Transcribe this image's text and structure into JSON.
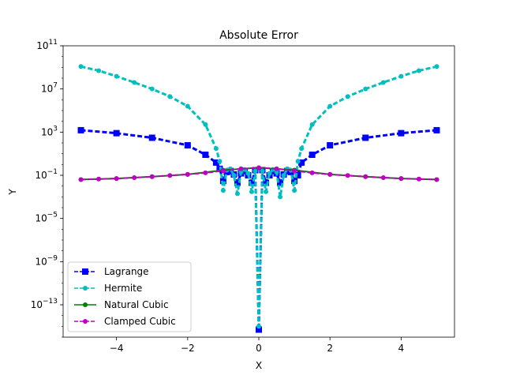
{
  "chart_data": {
    "type": "line",
    "title": "Absolute Error",
    "xlabel": "X",
    "ylabel": "Y",
    "xlim": [
      -5.5,
      5.5
    ],
    "ylim": [
      1e-16,
      100000000000.0
    ],
    "yscale": "log",
    "grid": false,
    "legend_position": "lower-left",
    "x_ticks": [
      -4,
      -2,
      0,
      2,
      4
    ],
    "x_tick_labels": [
      "−4",
      "−2",
      "0",
      "2",
      "4"
    ],
    "y_ticks": [
      {
        "value": 100000000000.0,
        "base": "10",
        "exp": "11"
      },
      {
        "value": 10000000.0,
        "base": "10",
        "exp": "7"
      },
      {
        "value": 1000.0,
        "base": "10",
        "exp": "3"
      },
      {
        "value": 0.1,
        "base": "10",
        "exp": "−1"
      },
      {
        "value": 1e-05,
        "base": "10",
        "exp": "−5"
      },
      {
        "value": 1e-09,
        "base": "10",
        "exp": "−9"
      },
      {
        "value": 1e-13,
        "base": "10",
        "exp": "−13"
      }
    ],
    "series": [
      {
        "name": "Lagrange",
        "color": "#0000ff",
        "marker": "square",
        "line_style": "dashed",
        "x": [
          -5.0,
          -4.0,
          -3.0,
          -2.0,
          -1.5,
          -1.2,
          -1.1,
          -1.0,
          -0.9,
          -0.8,
          -0.7,
          -0.6,
          -0.5,
          -0.4,
          -0.3,
          -0.2,
          -0.1,
          0.0,
          0.1,
          0.2,
          0.3,
          0.4,
          0.5,
          0.6,
          0.7,
          0.8,
          0.9,
          1.0,
          1.1,
          1.2,
          1.5,
          2.0,
          3.0,
          4.0,
          5.0
        ],
        "y": [
          1500,
          800,
          300,
          60,
          8,
          1.5,
          0.4,
          0.03,
          0.2,
          0.25,
          0.12,
          0.02,
          0.15,
          0.25,
          0.1,
          0.02,
          0.3,
          5e-16,
          0.3,
          0.02,
          0.1,
          0.25,
          0.15,
          0.02,
          0.12,
          0.25,
          0.2,
          0.03,
          0.1,
          1.5,
          8,
          60,
          300,
          800,
          1500
        ]
      },
      {
        "name": "Hermite",
        "color": "#00bfbf",
        "marker": "dot",
        "line_style": "dashed",
        "x": [
          -5.0,
          -4.5,
          -4.0,
          -3.5,
          -3.0,
          -2.5,
          -2.0,
          -1.5,
          -1.2,
          -1.1,
          -1.0,
          -0.9,
          -0.8,
          -0.7,
          -0.6,
          -0.5,
          -0.4,
          -0.3,
          -0.2,
          -0.1,
          0.0,
          0.1,
          0.2,
          0.3,
          0.4,
          0.5,
          0.6,
          0.7,
          0.8,
          0.9,
          1.0,
          1.1,
          1.2,
          1.5,
          2.0,
          2.5,
          3.0,
          3.5,
          4.0,
          4.5,
          5.0
        ],
        "y": [
          1200000000.0,
          500000000.0,
          150000000.0,
          40000000.0,
          10000000.0,
          2000000.0,
          250000.0,
          5000,
          30,
          2,
          0.004,
          0.3,
          0.4,
          0.1,
          0.002,
          0.2,
          0.35,
          0.15,
          0.003,
          0.25,
          1e-15,
          0.25,
          0.003,
          0.15,
          0.35,
          0.2,
          0.001,
          0.1,
          0.4,
          0.3,
          0.004,
          2,
          30,
          5000,
          250000.0,
          2000000.0,
          10000000.0,
          40000000.0,
          150000000.0,
          500000000.0,
          1200000000.0
        ]
      },
      {
        "name": "Natural Cubic",
        "color": "#008000",
        "marker": "dot",
        "line_style": "solid",
        "x": [
          -5.0,
          -4.0,
          -3.0,
          -2.0,
          -1.0,
          0.0,
          1.0,
          2.0,
          3.0,
          4.0,
          5.0
        ],
        "y": [
          0.04,
          0.05,
          0.075,
          0.12,
          0.3,
          0.5,
          0.3,
          0.12,
          0.075,
          0.05,
          0.04
        ]
      },
      {
        "name": "Clamped Cubic",
        "color": "#bf00bf",
        "marker": "dot",
        "line_style": "dashed",
        "x": [
          -5.0,
          -4.5,
          -4.0,
          -3.5,
          -3.0,
          -2.5,
          -2.0,
          -1.5,
          -1.0,
          -0.5,
          0.0,
          0.5,
          1.0,
          1.5,
          2.0,
          2.5,
          3.0,
          3.5,
          4.0,
          4.5,
          5.0
        ],
        "y": [
          0.04,
          0.045,
          0.05,
          0.06,
          0.075,
          0.095,
          0.12,
          0.17,
          0.26,
          0.4,
          0.5,
          0.4,
          0.26,
          0.17,
          0.12,
          0.095,
          0.075,
          0.06,
          0.05,
          0.045,
          0.04
        ]
      }
    ]
  }
}
